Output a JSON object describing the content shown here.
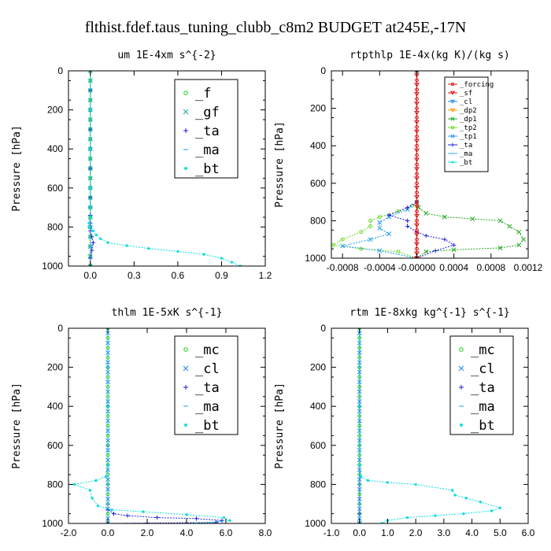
{
  "figure": {
    "title": "flthist.fdef.taus_tuning_clubb_c8m2  BUDGET at245E,-17N"
  },
  "colors": {
    "f": "#22cc22",
    "gf": "#22aaaa",
    "ta": "#2222dd",
    "ma": "#44aaff",
    "bt": "#11dddd",
    "mc": "#22cc22",
    "cl": "#2288ee",
    "forcing": "#dd1111",
    "sf": "#dd1111",
    "dp2": "#ff9900",
    "dp1": "#22aa22",
    "tp2": "#66dd22",
    "tp1": "#2299ee"
  },
  "chart_data": [
    {
      "type": "line",
      "title": "um  1E-4xm s^{-2}",
      "ylabel": "Pressure [hPa]",
      "xlabel": "",
      "xlim": [
        -0.15,
        1.2
      ],
      "ylim": [
        1000,
        0
      ],
      "xticks": [
        "0.0",
        "0.3",
        "0.6",
        "0.9",
        "1.2"
      ],
      "xtick_values": [
        0.0,
        0.3,
        0.6,
        0.9,
        1.2
      ],
      "yticks": [
        "0",
        "200",
        "400",
        "600",
        "800",
        "1000"
      ],
      "ytick_values": [
        0,
        200,
        400,
        600,
        800,
        1000
      ],
      "legend_position": "top-right",
      "legend": [
        "_f",
        "_gf",
        "_ta",
        "_ma",
        "_bt"
      ],
      "series": [
        {
          "key": "f",
          "name": "_f",
          "marker": "circle",
          "x": [
            0,
            0,
            0,
            0,
            0,
            0,
            0,
            0,
            0,
            0,
            0,
            0,
            0,
            0,
            0,
            0,
            0,
            0,
            0,
            0,
            0
          ],
          "y": [
            0,
            50,
            100,
            150,
            200,
            250,
            300,
            350,
            400,
            450,
            500,
            550,
            600,
            650,
            700,
            750,
            800,
            850,
            900,
            950,
            1000
          ]
        },
        {
          "key": "gf",
          "name": "_gf",
          "marker": "x",
          "x": [
            0,
            0,
            0,
            0,
            0,
            0,
            0,
            0,
            0,
            0,
            0,
            0,
            0,
            0,
            0,
            0,
            0,
            0,
            0,
            0,
            0
          ],
          "y": [
            0,
            50,
            100,
            150,
            200,
            250,
            300,
            350,
            400,
            450,
            500,
            550,
            600,
            650,
            700,
            750,
            800,
            850,
            900,
            950,
            1000
          ]
        },
        {
          "key": "ta",
          "name": "_ta",
          "marker": "plus",
          "x": [
            0.0,
            0.0,
            0.0,
            0.0,
            0.0,
            0.0,
            0.0,
            0.0,
            0.0,
            0.0,
            0.0,
            0.0,
            0.0,
            0.01,
            0.02,
            0.01,
            0.0,
            0.0
          ],
          "y": [
            0,
            100,
            200,
            300,
            400,
            500,
            600,
            650,
            700,
            740,
            780,
            800,
            820,
            850,
            880,
            920,
            960,
            1000
          ]
        },
        {
          "key": "ma",
          "name": "_ma",
          "marker": "dash",
          "x": [
            0,
            0,
            0,
            0,
            0,
            0,
            0
          ],
          "y": [
            0,
            200,
            400,
            600,
            800,
            900,
            1000
          ]
        },
        {
          "key": "bt",
          "name": "_bt",
          "marker": "dot",
          "x": [
            0.0,
            0.0,
            0.0,
            0.0,
            0.0,
            0.0,
            -0.01,
            -0.01,
            0.02,
            0.04,
            0.07,
            0.12,
            0.25,
            0.4,
            0.6,
            0.78,
            0.9,
            0.97,
            1.03
          ],
          "y": [
            0,
            200,
            400,
            600,
            700,
            750,
            780,
            800,
            820,
            840,
            860,
            880,
            895,
            910,
            925,
            940,
            960,
            980,
            1000
          ]
        }
      ]
    },
    {
      "type": "line",
      "title": "rtpthlp  1E-4x(kg K)/(kg s)",
      "ylabel": "Pressure [hPa]",
      "xlabel": "",
      "xlim": [
        -0.00092,
        0.0012
      ],
      "ylim": [
        1000,
        0
      ],
      "xticks": [
        "-0.0008",
        "-0.0004",
        "-0.00000",
        "0.0004",
        "0.0008",
        "0.0012"
      ],
      "xtick_values": [
        -0.0008,
        -0.0004,
        0.0,
        0.0004,
        0.0008,
        0.0012
      ],
      "yticks": [
        "0",
        "200",
        "400",
        "600",
        "800",
        "1000"
      ],
      "ytick_values": [
        0,
        200,
        400,
        600,
        800,
        1000
      ],
      "legend_position": "top-right",
      "legend": [
        "_forcing",
        "_sf",
        "_cl",
        "_dp2",
        "_dp1",
        "_tp2",
        "_tp1",
        "_ta",
        "_ma",
        "_bt"
      ],
      "series": [
        {
          "key": "dp1",
          "name": "_dp1",
          "marker": "x",
          "x": [
            0,
            0,
            2e-05,
            0.0001,
            0.0003,
            0.0006,
            0.0009,
            0.001,
            0.0011,
            0.00115,
            0.0011,
            0.0009,
            0.0004,
            0.0001,
            0.0
          ],
          "y": [
            0,
            700,
            730,
            760,
            780,
            790,
            800,
            830,
            860,
            900,
            930,
            945,
            955,
            965,
            1000
          ]
        },
        {
          "key": "tp2",
          "name": "_tp2",
          "marker": "circle",
          "x": [
            0,
            0,
            -5e-05,
            -0.0002,
            -0.0004,
            -0.0005,
            -0.0005,
            -0.0006,
            -0.0008,
            -0.0009,
            -0.0006,
            -0.0002,
            0.0
          ],
          "y": [
            0,
            700,
            720,
            750,
            780,
            800,
            830,
            860,
            900,
            930,
            950,
            965,
            1000
          ]
        },
        {
          "key": "tp1",
          "name": "_tp1",
          "marker": "x",
          "x": [
            0,
            0,
            -0.0001,
            -0.0003,
            -0.0004,
            -0.0004,
            -0.0003,
            -0.0005,
            -0.0008,
            -0.0004,
            0.0
          ],
          "y": [
            0,
            700,
            740,
            780,
            810,
            840,
            870,
            900,
            935,
            960,
            1000
          ]
        },
        {
          "key": "ta",
          "name": "_ta",
          "marker": "plus",
          "x": [
            0,
            0,
            -0.0001,
            -0.0003,
            -0.0001,
            -0.0001,
            0.0,
            0.0001,
            0.0003,
            0.0004,
            0.0002,
            0.0
          ],
          "y": [
            0,
            700,
            730,
            770,
            800,
            830,
            860,
            880,
            900,
            930,
            960,
            1000
          ]
        },
        {
          "key": "forcing",
          "name": "_forcing",
          "marker": "circle",
          "x": [
            0,
            0,
            0,
            0,
            0,
            0,
            0,
            0,
            0,
            0,
            0,
            0,
            0,
            0,
            0,
            0,
            0,
            0,
            0,
            0,
            0
          ],
          "y": [
            0,
            50,
            100,
            150,
            200,
            250,
            300,
            350,
            400,
            450,
            500,
            550,
            600,
            650,
            700,
            750,
            800,
            850,
            900,
            950,
            1000
          ]
        },
        {
          "key": "sf",
          "name": "_sf",
          "marker": "triangle",
          "x": [
            0,
            0,
            0,
            0,
            0,
            0,
            0,
            0,
            0,
            0,
            0,
            0,
            0,
            0,
            0,
            0,
            0,
            0,
            0,
            0,
            0
          ],
          "y": [
            25,
            75,
            125,
            175,
            225,
            275,
            325,
            375,
            425,
            475,
            525,
            575,
            625,
            675,
            725,
            775,
            825,
            875,
            925,
            975,
            1000
          ]
        }
      ]
    },
    {
      "type": "line",
      "title": "thlm  1E-5xK s^{-1}",
      "ylabel": "Pressure [hPa]",
      "xlabel": "",
      "xlim": [
        -2.0,
        8.0
      ],
      "ylim": [
        1000,
        0
      ],
      "xticks": [
        "-2.0",
        "0.0",
        "2.0",
        "4.0",
        "6.0",
        "8.0"
      ],
      "xtick_values": [
        -2.0,
        0.0,
        2.0,
        4.0,
        6.0,
        8.0
      ],
      "yticks": [
        "0",
        "200",
        "400",
        "600",
        "800",
        "1000"
      ],
      "ytick_values": [
        0,
        200,
        400,
        600,
        800,
        1000
      ],
      "legend_position": "top-right",
      "legend": [
        "_mc",
        "_cl",
        "_ta",
        "_ma",
        "_bt"
      ],
      "series": [
        {
          "key": "mc",
          "name": "_mc",
          "marker": "circle",
          "x": [
            0,
            0,
            0,
            0,
            0,
            0,
            0,
            0,
            0,
            0,
            0,
            0,
            0,
            0,
            0,
            0,
            0,
            0,
            0,
            0,
            0
          ],
          "y": [
            0,
            50,
            100,
            150,
            200,
            250,
            300,
            350,
            400,
            450,
            500,
            550,
            600,
            650,
            700,
            750,
            800,
            850,
            900,
            950,
            1000
          ]
        },
        {
          "key": "cl",
          "name": "_cl",
          "marker": "x",
          "x": [
            0,
            0,
            0,
            0,
            0,
            0,
            0,
            0,
            0,
            0,
            0,
            0,
            0,
            0,
            0,
            0,
            0,
            0,
            0,
            0,
            0
          ],
          "y": [
            25,
            75,
            125,
            175,
            225,
            275,
            325,
            375,
            425,
            475,
            525,
            575,
            625,
            675,
            725,
            775,
            825,
            875,
            925,
            975,
            1000
          ]
        },
        {
          "key": "ta",
          "name": "_ta",
          "marker": "plus",
          "x": [
            0.0,
            0.0,
            0.0,
            0.0,
            0.0,
            0.0,
            0.0,
            0.3,
            1.0,
            2.5,
            4.5,
            5.8,
            5.5,
            2.0,
            0.0
          ],
          "y": [
            0,
            200,
            400,
            600,
            800,
            900,
            930,
            950,
            960,
            970,
            975,
            985,
            995,
            998,
            1000
          ]
        },
        {
          "key": "ma",
          "name": "_ma",
          "marker": "dash",
          "x": [
            0,
            0,
            0,
            0,
            0,
            0,
            0
          ],
          "y": [
            0,
            200,
            400,
            600,
            800,
            900,
            1000
          ]
        },
        {
          "key": "bt",
          "name": "_bt",
          "marker": "dot",
          "x": [
            0.0,
            0.0,
            0.0,
            -0.1,
            -0.6,
            -1.7,
            -0.9,
            -0.8,
            -0.5,
            0.2,
            1.8,
            4.0,
            5.9,
            6.2,
            4.5
          ],
          "y": [
            0,
            400,
            700,
            760,
            780,
            800,
            830,
            870,
            910,
            930,
            940,
            955,
            970,
            985,
            1000
          ]
        }
      ]
    },
    {
      "type": "line",
      "title": "rtm  1E-8xkg kg^{-1} s^{-1}",
      "ylabel": "Pressure [hPa]",
      "xlabel": "",
      "xlim": [
        -1.0,
        6.0
      ],
      "ylim": [
        1000,
        0
      ],
      "xticks": [
        "-1.0",
        "0.0",
        "1.0",
        "2.0",
        "3.0",
        "4.0",
        "5.0",
        "6.0"
      ],
      "xtick_values": [
        -1.0,
        0.0,
        1.0,
        2.0,
        3.0,
        4.0,
        5.0,
        6.0
      ],
      "yticks": [
        "0",
        "200",
        "400",
        "600",
        "800",
        "1000"
      ],
      "ytick_values": [
        0,
        200,
        400,
        600,
        800,
        1000
      ],
      "legend_position": "top-right",
      "legend": [
        "_mc",
        "_cl",
        "_ta",
        "_ma",
        "_bt"
      ],
      "series": [
        {
          "key": "mc",
          "name": "_mc",
          "marker": "circle",
          "x": [
            0,
            0,
            0,
            0,
            0,
            0,
            0,
            0,
            0,
            0,
            0,
            0,
            0,
            0,
            0,
            0,
            0,
            0,
            0,
            0,
            0
          ],
          "y": [
            0,
            50,
            100,
            150,
            200,
            250,
            300,
            350,
            400,
            450,
            500,
            550,
            600,
            650,
            700,
            750,
            800,
            850,
            900,
            950,
            1000
          ]
        },
        {
          "key": "cl",
          "name": "_cl",
          "marker": "x",
          "x": [
            0,
            0,
            0,
            0,
            0,
            0,
            0,
            0,
            0,
            0,
            0,
            0,
            0,
            0,
            0,
            0,
            0,
            0,
            0,
            0,
            0
          ],
          "y": [
            25,
            75,
            125,
            175,
            225,
            275,
            325,
            375,
            425,
            475,
            525,
            575,
            625,
            675,
            725,
            775,
            825,
            875,
            925,
            975,
            1000
          ]
        },
        {
          "key": "ta",
          "name": "_ta",
          "marker": "plus",
          "x": [
            0.0,
            0.0,
            0.0,
            0.0,
            0.0
          ],
          "y": [
            0,
            400,
            800,
            950,
            1000
          ]
        },
        {
          "key": "ma",
          "name": "_ma",
          "marker": "dash",
          "x": [
            0,
            0,
            0,
            0,
            0,
            0,
            0
          ],
          "y": [
            0,
            200,
            400,
            600,
            800,
            900,
            1000
          ]
        },
        {
          "key": "bt",
          "name": "_bt",
          "marker": "dot",
          "x": [
            0.0,
            0.0,
            0.0,
            0.05,
            0.3,
            1.0,
            2.0,
            3.3,
            3.4,
            3.8,
            4.3,
            5.0,
            4.7,
            3.7,
            2.7,
            1.7,
            1.0,
            0.8
          ],
          "y": [
            0,
            400,
            700,
            760,
            780,
            790,
            800,
            830,
            855,
            870,
            890,
            920,
            935,
            950,
            960,
            970,
            985,
            1000
          ]
        }
      ]
    }
  ]
}
